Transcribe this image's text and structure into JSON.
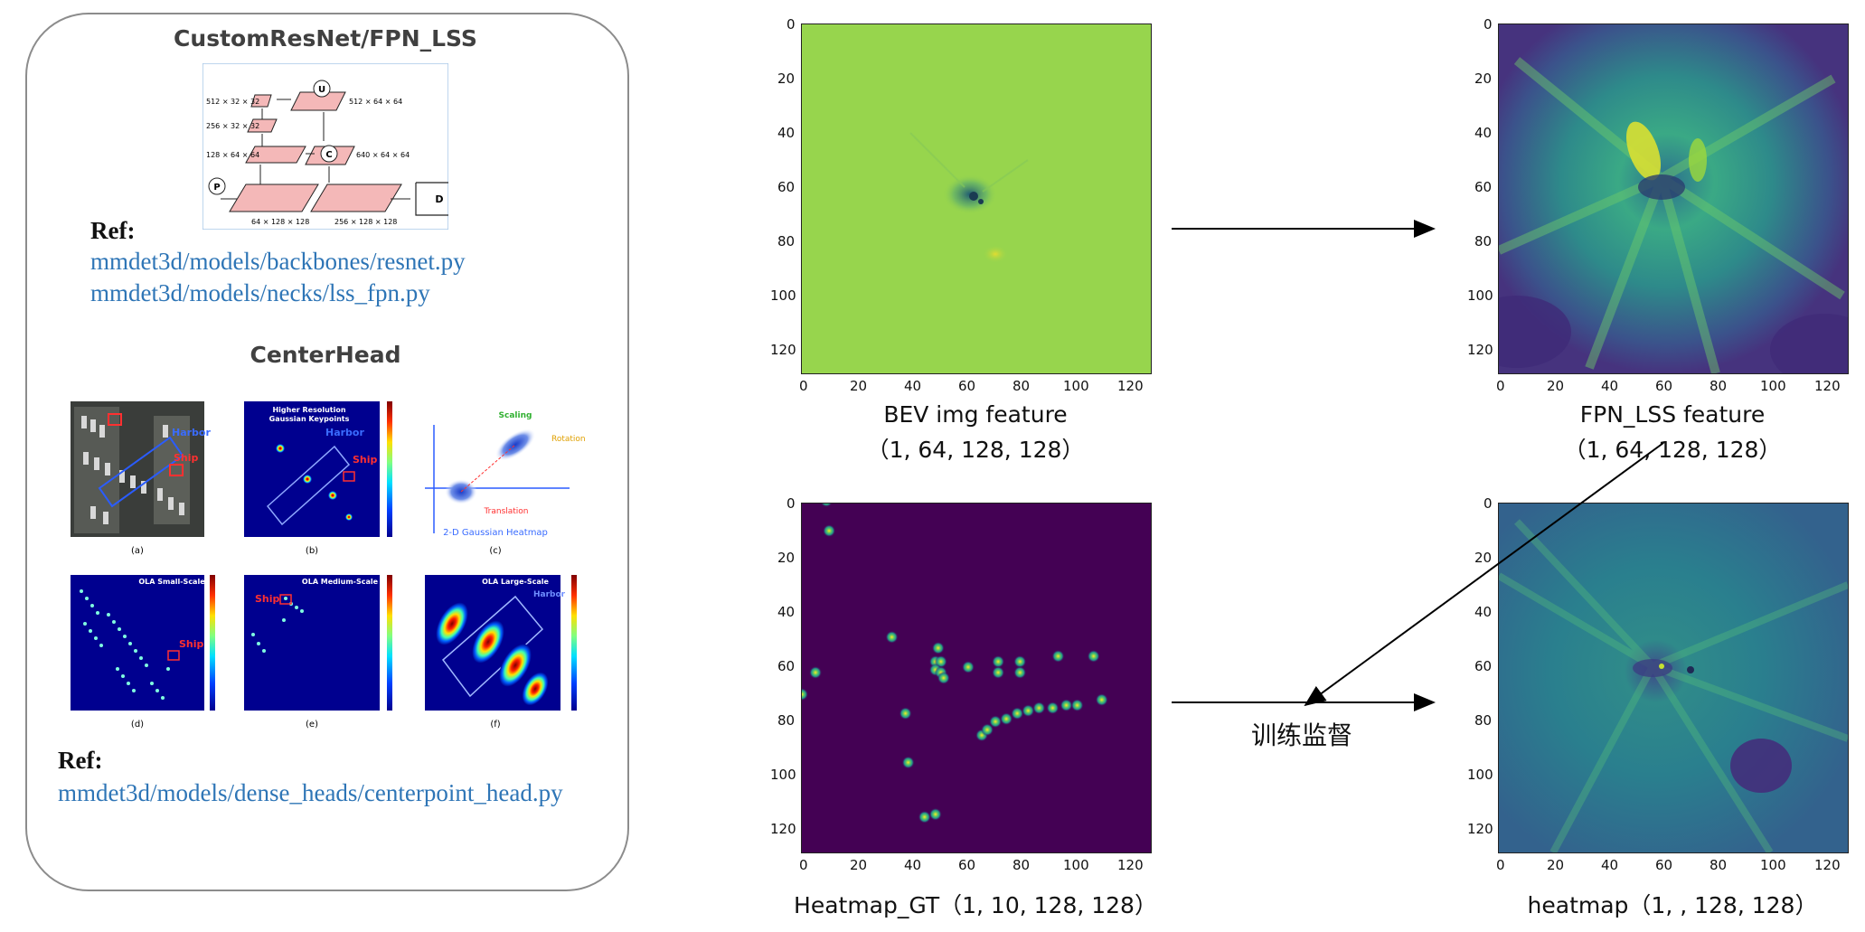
{
  "left_panel": {
    "title1": "CustomResNet/FPN_LSS",
    "fpn_diagram": {
      "labels": [
        "512 × 32 × 32",
        "256 × 32 × 32",
        "128 × 64 × 64",
        "64 × 128 × 128",
        "512 × 64 × 64",
        "640 × 64 × 64",
        "256 × 128 × 128"
      ],
      "circle_u": "U",
      "circle_c": "C",
      "circle_p": "P",
      "box_d": "D"
    },
    "ref1_label": "Ref:",
    "ref1_links": [
      "mmdet3d/models/backbones/resnet.py",
      "mmdet3d/models/necks/lss_fpn.py"
    ],
    "title2": "CenterHead",
    "centerhead_fig": {
      "a_labels": {
        "harbor": "Harbor",
        "ship": "Ship"
      },
      "b_labels": {
        "title1": "Higher Resolution",
        "title2": "Gaussian Keypoints",
        "harbor": "Harbor",
        "ship": "Ship"
      },
      "c_labels": {
        "scaling": "Scaling",
        "rotation": "Rotation",
        "translation": "Translation",
        "caption": "2-D Gaussian Heatmap"
      },
      "d_title": "OLA Small-Scale",
      "e_title": "OLA Medium-Scale",
      "f_title": "OLA Large-Scale",
      "d_ship": "Ship",
      "e_ship": "Ship",
      "f_harbor": "Harbor",
      "sub_labels": [
        "(a)",
        "(b)",
        "(c)",
        "(d)",
        "(e)",
        "(f)"
      ]
    },
    "ref2_label": "Ref:",
    "ref2_link": "mmdet3d/models/dense_heads/centerpoint_head.py"
  },
  "plots": {
    "ticks": [
      "0",
      "20",
      "40",
      "60",
      "80",
      "100",
      "120"
    ],
    "bev": {
      "caption1": "BEV img feature",
      "caption2": "（1, 64, 128, 128）"
    },
    "fpn": {
      "caption1": "FPN_LSS feature",
      "caption2": "（1, 64, 128, 128）"
    },
    "gt": {
      "caption": "Heatmap_GT（1, 10, 128, 128）"
    },
    "heat": {
      "caption": "heatmap（1, , 128, 128）"
    }
  },
  "supervision_label": "训练监督",
  "colors": {
    "bev_bg": "#97d54d",
    "gt_bg": "#440154",
    "link": "#2e75b6",
    "viridis_mid": "#2a8d89"
  },
  "chart_data": {
    "type": "scatter",
    "title": "Heatmap_GT（1, 10, 128, 128）",
    "xlim": [
      0,
      128
    ],
    "ylim": [
      128,
      0
    ],
    "points": [
      [
        0,
        70
      ],
      [
        5,
        62
      ],
      [
        9,
        -1
      ],
      [
        10,
        10
      ],
      [
        33,
        49
      ],
      [
        38,
        77
      ],
      [
        39,
        95
      ],
      [
        45,
        115
      ],
      [
        49,
        114
      ],
      [
        50,
        53
      ],
      [
        49,
        58
      ],
      [
        51,
        58
      ],
      [
        49,
        61
      ],
      [
        51,
        62
      ],
      [
        52,
        64
      ],
      [
        61,
        60
      ],
      [
        72,
        58
      ],
      [
        72,
        62
      ],
      [
        80,
        58
      ],
      [
        80,
        62
      ],
      [
        94,
        56
      ],
      [
        107,
        56
      ],
      [
        66,
        85
      ],
      [
        68,
        83
      ],
      [
        71,
        80
      ],
      [
        75,
        79
      ],
      [
        79,
        77
      ],
      [
        83,
        76
      ],
      [
        87,
        75
      ],
      [
        92,
        75
      ],
      [
        97,
        74
      ],
      [
        101,
        74
      ],
      [
        110,
        72
      ]
    ]
  }
}
